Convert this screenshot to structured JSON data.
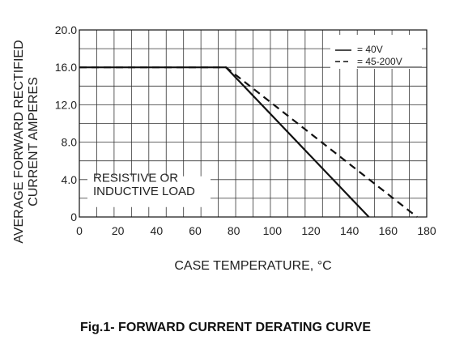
{
  "caption": "Fig.1- FORWARD CURRENT DERATING CURVE",
  "chart_data": {
    "type": "line",
    "xlabel": "CASE TEMPERATURE, °C",
    "ylabel_lines": [
      "AVERAGE FORWARD RECTIFIED",
      "CURRENT AMPERES"
    ],
    "xlim": [
      0,
      180
    ],
    "ylim": [
      0,
      20
    ],
    "x_ticks": [
      0,
      20,
      40,
      60,
      80,
      100,
      120,
      140,
      160,
      180
    ],
    "x_tick_labels": [
      "0",
      "20",
      "40",
      "60",
      "80",
      "100",
      "120",
      "140",
      "160",
      "180"
    ],
    "y_ticks": [
      0,
      4,
      8,
      12,
      16,
      20
    ],
    "y_tick_labels": [
      "0",
      "4.0",
      "8.0",
      "12.0",
      "16.0",
      "20.0"
    ],
    "grid": true,
    "legend_position": "top-right",
    "annotation_lines": [
      "RESISTIVE OR",
      "INDUCTIVE LOAD"
    ],
    "series": [
      {
        "name": "= 40V",
        "style": "solid",
        "color": "#111111",
        "x": [
          0,
          76,
          150
        ],
        "y": [
          16,
          16,
          0
        ]
      },
      {
        "name": "= 45-200V",
        "style": "dashed",
        "color": "#111111",
        "x": [
          0,
          76,
          175
        ],
        "y": [
          16,
          16,
          0
        ]
      }
    ]
  }
}
